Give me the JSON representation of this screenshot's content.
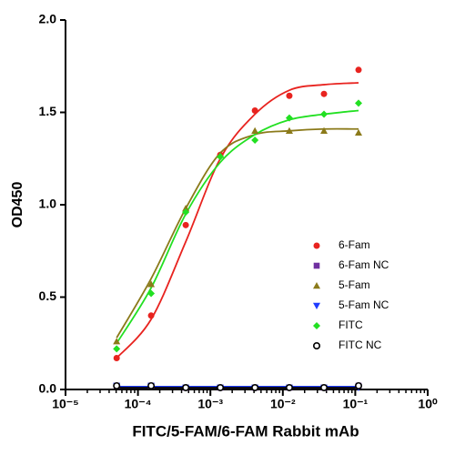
{
  "chart_data": {
    "type": "scatter",
    "xlabel": "FITC/5-FAM/6-FAM Rabbit mAb",
    "ylabel": "OD450",
    "log_x": true,
    "xlim": [
      1e-05,
      1
    ],
    "xticks": [
      {
        "value": 1e-05,
        "label": "10⁻⁵"
      },
      {
        "value": 0.0001,
        "label": "10⁻⁴"
      },
      {
        "value": 0.001,
        "label": "10⁻³"
      },
      {
        "value": 0.01,
        "label": "10⁻²"
      },
      {
        "value": 0.1,
        "label": "10⁻¹"
      },
      {
        "value": 1,
        "label": "10⁰"
      }
    ],
    "ylim": [
      0,
      2
    ],
    "yticks": [
      {
        "value": 0,
        "label": "0.0"
      },
      {
        "value": 0.5,
        "label": "0.5"
      },
      {
        "value": 1,
        "label": "1.0"
      },
      {
        "value": 1.5,
        "label": "1.5"
      },
      {
        "value": 2,
        "label": "2.0"
      }
    ],
    "x": [
      5.08e-05,
      0.000152,
      0.000457,
      0.00137,
      0.00412,
      0.0123,
      0.037,
      0.111
    ],
    "series": [
      {
        "name": "6-Fam",
        "color": "#e8231f",
        "marker": "circle",
        "values": [
          0.17,
          0.4,
          0.89,
          1.27,
          1.51,
          1.59,
          1.6,
          1.73
        ],
        "fit": [
          0.17,
          0.38,
          0.8,
          1.25,
          1.49,
          1.62,
          1.65,
          1.66
        ]
      },
      {
        "name": "6-Fam NC",
        "color": "#7030a0",
        "marker": "square",
        "values": [
          0.02,
          0.02,
          0.01,
          0.01,
          0.01,
          0.01,
          0.01,
          0.02
        ],
        "fit": [
          0.01,
          0.01,
          0.01,
          0.01,
          0.01,
          0.01,
          0.01,
          0.01
        ]
      },
      {
        "name": "5-Fam",
        "color": "#8b7a1a",
        "marker": "triangle",
        "values": [
          0.26,
          0.57,
          0.98,
          1.27,
          1.4,
          1.4,
          1.4,
          1.39
        ],
        "fit": [
          0.28,
          0.6,
          0.98,
          1.28,
          1.38,
          1.4,
          1.41,
          1.41
        ]
      },
      {
        "name": "5-Fam NC",
        "color": "#1f3cff",
        "marker": "triangle-down",
        "values": [
          0.02,
          0.02,
          0.01,
          0.01,
          0.01,
          0.01,
          0.01,
          0.01
        ],
        "fit": [
          0.015,
          0.015,
          0.015,
          0.015,
          0.015,
          0.015,
          0.015,
          0.015
        ]
      },
      {
        "name": "FITC",
        "color": "#22e022",
        "marker": "diamond",
        "values": [
          0.22,
          0.52,
          0.96,
          1.26,
          1.35,
          1.47,
          1.49,
          1.55
        ],
        "fit": [
          0.25,
          0.55,
          0.95,
          1.23,
          1.38,
          1.46,
          1.49,
          1.51
        ]
      },
      {
        "name": "FITC NC",
        "color": "#000000",
        "marker": "circle-open",
        "values": [
          0.02,
          0.02,
          0.01,
          0.01,
          0.01,
          0.01,
          0.01,
          0.02
        ],
        "fit": [
          0.01,
          0.01,
          0.01,
          0.01,
          0.01,
          0.01,
          0.01,
          0.01
        ]
      }
    ]
  }
}
